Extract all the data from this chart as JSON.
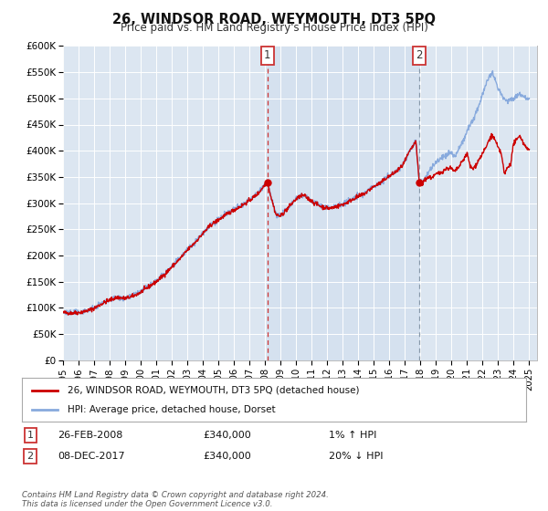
{
  "title": "26, WINDSOR ROAD, WEYMOUTH, DT3 5PQ",
  "subtitle": "Price paid vs. HM Land Registry's House Price Index (HPI)",
  "ylim": [
    0,
    600000
  ],
  "yticks": [
    0,
    50000,
    100000,
    150000,
    200000,
    250000,
    300000,
    350000,
    400000,
    450000,
    500000,
    550000,
    600000
  ],
  "ytick_labels": [
    "£0",
    "£50K",
    "£100K",
    "£150K",
    "£200K",
    "£250K",
    "£300K",
    "£350K",
    "£400K",
    "£450K",
    "£500K",
    "£550K",
    "£600K"
  ],
  "xlim_start": 1995.0,
  "xlim_end": 2025.5,
  "xticks": [
    1995,
    1996,
    1997,
    1998,
    1999,
    2000,
    2001,
    2002,
    2003,
    2004,
    2005,
    2006,
    2007,
    2008,
    2009,
    2010,
    2011,
    2012,
    2013,
    2014,
    2015,
    2016,
    2017,
    2018,
    2019,
    2020,
    2021,
    2022,
    2023,
    2024,
    2025
  ],
  "legend_line1": "26, WINDSOR ROAD, WEYMOUTH, DT3 5PQ (detached house)",
  "legend_line2": "HPI: Average price, detached house, Dorset",
  "line1_color": "#cc0000",
  "line2_color": "#88aadd",
  "marker_color": "#cc0000",
  "sale1_x": 2008.15,
  "sale1_y": 340000,
  "sale1_label": "1",
  "sale1_date": "26-FEB-2008",
  "sale1_price": "£340,000",
  "sale1_hpi": "1% ↑ HPI",
  "sale2_x": 2017.92,
  "sale2_y": 340000,
  "sale2_label": "2",
  "sale2_date": "08-DEC-2017",
  "sale2_price": "£340,000",
  "sale2_hpi": "20% ↓ HPI",
  "background_color": "#ffffff",
  "plot_bg_color": "#dce6f1",
  "shade_color": "#c8d8ee",
  "grid_color": "#ffffff",
  "footer_text": "Contains HM Land Registry data © Crown copyright and database right 2024.\nThis data is licensed under the Open Government Licence v3.0."
}
